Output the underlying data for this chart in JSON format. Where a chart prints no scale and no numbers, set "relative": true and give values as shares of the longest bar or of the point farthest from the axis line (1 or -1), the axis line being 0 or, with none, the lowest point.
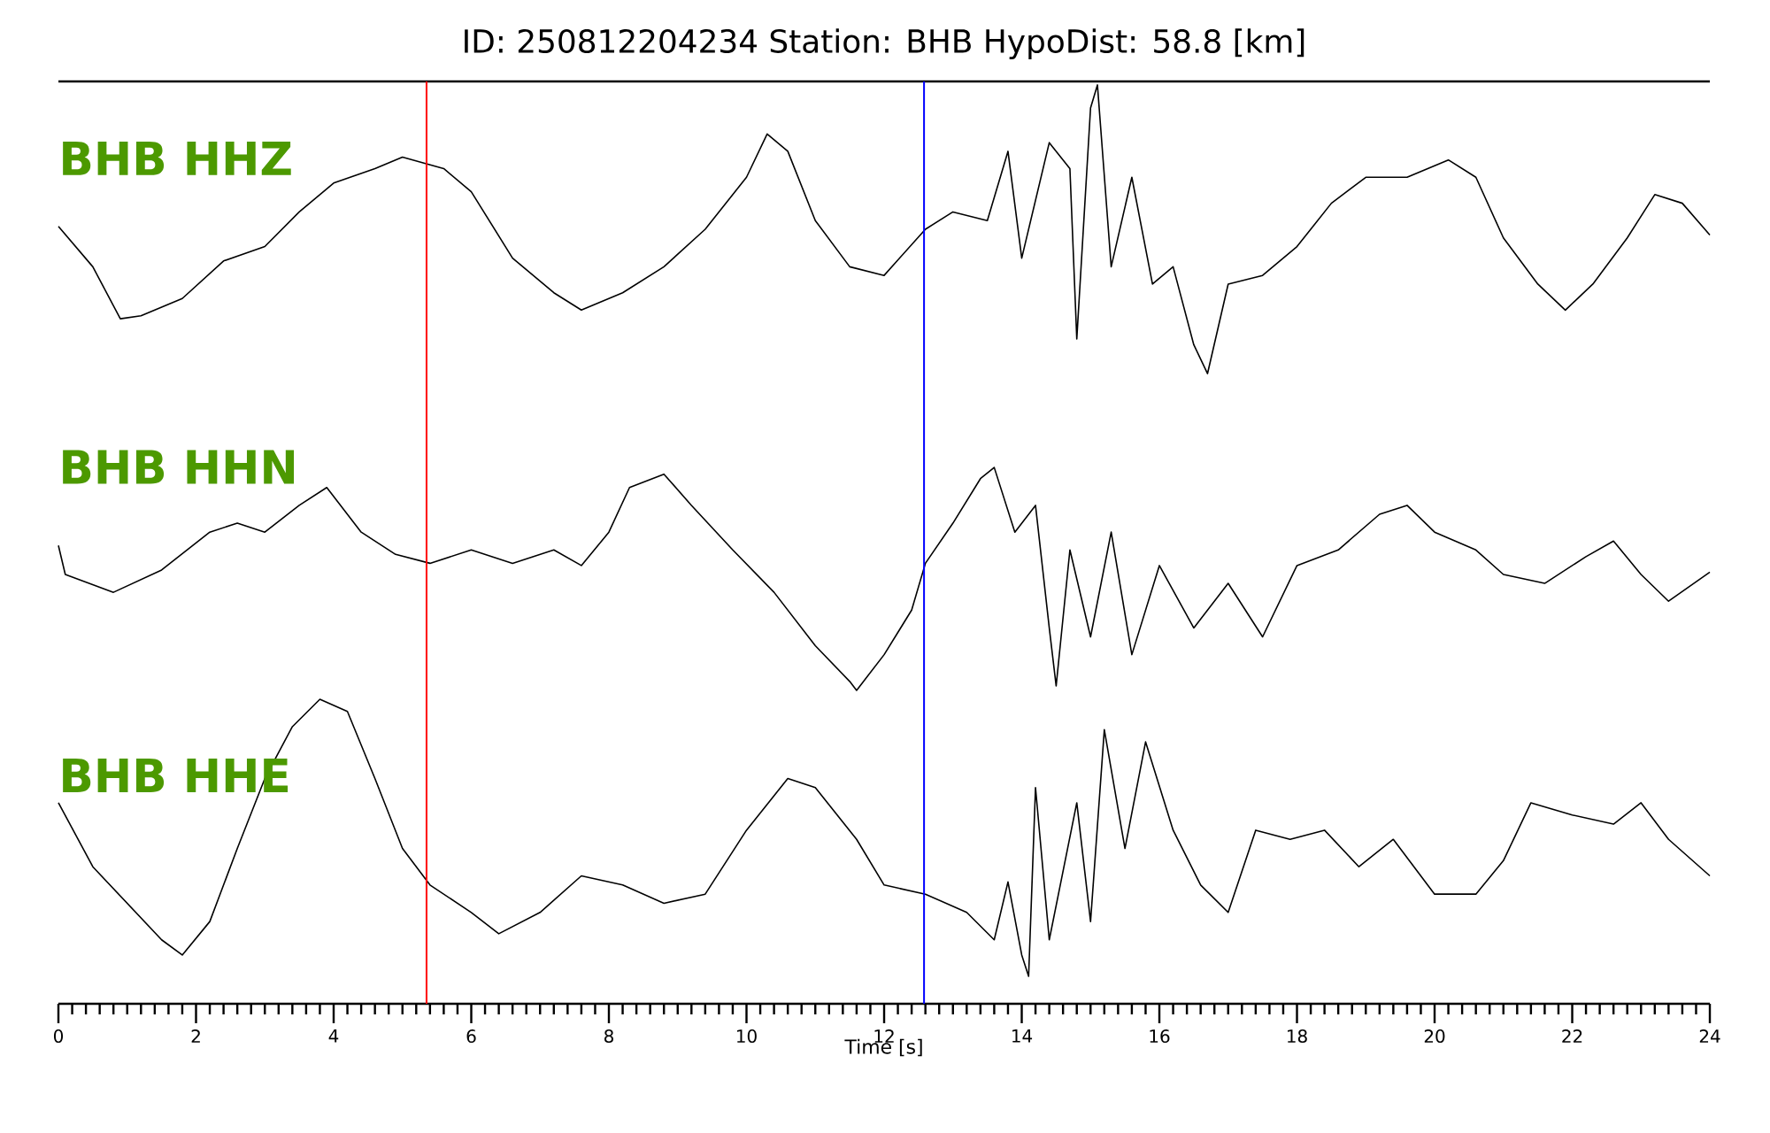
{
  "chart_data": [
    {
      "type": "line",
      "title": "ID: 250812204234   Station: BHB   HypoDist:    58.8 [km]",
      "relative": true,
      "xlim": [
        0,
        24
      ],
      "tick_labels": false,
      "annotations": [
        "BHB HHZ"
      ],
      "ref_lines": [
        {
          "axis": "x",
          "value": 5.35,
          "color": "#ff0000"
        },
        {
          "axis": "x",
          "value": 12.58,
          "color": "#0000ff"
        }
      ],
      "x": [
        0,
        0.5,
        0.9,
        1.2,
        1.8,
        2.4,
        3.0,
        3.5,
        4.0,
        4.6,
        5.0,
        5.6,
        6.0,
        6.6,
        7.2,
        7.6,
        8.2,
        8.8,
        9.4,
        10.0,
        10.3,
        10.6,
        11.0,
        11.5,
        12.0,
        12.6,
        13.0,
        13.5,
        13.8,
        14.0,
        14.4,
        14.7,
        14.8,
        15.0,
        15.1,
        15.3,
        15.6,
        15.9,
        16.2,
        16.5,
        16.7,
        17.0,
        17.5,
        18.0,
        18.5,
        19.0,
        19.6,
        20.2,
        20.6,
        21.0,
        21.5,
        21.9,
        22.3,
        22.8,
        23.2,
        23.6,
        24
      ],
      "series": [
        {
          "color": "#000000",
          "values": [
            0.51,
            0.37,
            0.19,
            0.2,
            0.26,
            0.39,
            0.44,
            0.56,
            0.66,
            0.71,
            0.75,
            0.71,
            0.63,
            0.4,
            0.28,
            0.22,
            0.28,
            0.37,
            0.5,
            0.68,
            0.83,
            0.77,
            0.53,
            0.37,
            0.34,
            0.5,
            0.56,
            0.53,
            0.77,
            0.4,
            0.8,
            0.71,
            0.12,
            0.92,
            1.0,
            0.37,
            0.68,
            0.31,
            0.37,
            0.1,
            0.0,
            0.31,
            0.34,
            0.44,
            0.59,
            0.68,
            0.68,
            0.74,
            0.68,
            0.47,
            0.31,
            0.22,
            0.31,
            0.47,
            0.62,
            0.59,
            0.48
          ]
        }
      ]
    },
    {
      "type": "line",
      "relative": true,
      "xlim": [
        0,
        24
      ],
      "tick_labels": false,
      "annotations": [
        "BHB HHN"
      ],
      "ref_lines": [
        {
          "axis": "x",
          "value": 5.35,
          "color": "#ff0000"
        },
        {
          "axis": "x",
          "value": 12.58,
          "color": "#0000ff"
        }
      ],
      "x": [
        0,
        0.1,
        0.8,
        1.5,
        2.2,
        2.6,
        3.0,
        3.5,
        3.9,
        4.4,
        4.9,
        5.4,
        6.0,
        6.6,
        7.2,
        7.6,
        8.0,
        8.3,
        8.8,
        9.2,
        9.8,
        10.4,
        11.0,
        11.5,
        11.6,
        12.0,
        12.4,
        12.6,
        13.0,
        13.4,
        13.6,
        13.9,
        14.2,
        14.4,
        14.5,
        14.7,
        15.0,
        15.3,
        15.6,
        16.0,
        16.5,
        17.0,
        17.5,
        18.0,
        18.6,
        19.2,
        19.6,
        20.0,
        20.6,
        21.0,
        21.6,
        22.2,
        22.6,
        23.0,
        23.4,
        24
      ],
      "series": [
        {
          "color": "#000000",
          "values": [
            0.65,
            0.52,
            0.44,
            0.54,
            0.71,
            0.75,
            0.71,
            0.83,
            0.91,
            0.71,
            0.61,
            0.57,
            0.63,
            0.57,
            0.63,
            0.56,
            0.71,
            0.91,
            0.97,
            0.83,
            0.63,
            0.44,
            0.2,
            0.04,
            0.0,
            0.16,
            0.36,
            0.57,
            0.75,
            0.95,
            1.0,
            0.71,
            0.83,
            0.28,
            0.02,
            0.63,
            0.24,
            0.71,
            0.16,
            0.56,
            0.28,
            0.48,
            0.24,
            0.56,
            0.63,
            0.79,
            0.83,
            0.71,
            0.63,
            0.52,
            0.48,
            0.6,
            0.67,
            0.52,
            0.4,
            0.53
          ]
        }
      ]
    },
    {
      "type": "line",
      "xlabel": "Time [s]",
      "relative": true,
      "xlim": [
        0,
        24
      ],
      "xticks": [
        0,
        2,
        4,
        6,
        8,
        10,
        12,
        14,
        16,
        18,
        20,
        22,
        24
      ],
      "annotations": [
        "BHB HHE"
      ],
      "ref_lines": [
        {
          "axis": "x",
          "value": 5.35,
          "color": "#ff0000"
        },
        {
          "axis": "x",
          "value": 12.58,
          "color": "#0000ff"
        }
      ],
      "x": [
        0,
        0.5,
        1.0,
        1.5,
        1.8,
        2.2,
        2.6,
        3.0,
        3.4,
        3.8,
        4.2,
        4.6,
        5.0,
        5.4,
        6.0,
        6.4,
        7.0,
        7.6,
        8.2,
        8.8,
        9.4,
        10.0,
        10.6,
        11.0,
        11.6,
        12.0,
        12.6,
        13.2,
        13.6,
        13.8,
        14.0,
        14.1,
        14.2,
        14.4,
        14.8,
        15.0,
        15.2,
        15.5,
        15.8,
        16.2,
        16.6,
        17.0,
        17.4,
        17.9,
        18.4,
        18.9,
        19.4,
        20.0,
        20.6,
        21.0,
        21.4,
        22.0,
        22.6,
        23.0,
        23.4,
        24
      ],
      "series": [
        {
          "color": "#000000",
          "values": [
            0.66,
            0.45,
            0.33,
            0.21,
            0.16,
            0.27,
            0.51,
            0.74,
            0.91,
            1.0,
            0.96,
            0.74,
            0.51,
            0.39,
            0.3,
            0.23,
            0.3,
            0.42,
            0.39,
            0.33,
            0.36,
            0.57,
            0.74,
            0.71,
            0.54,
            0.39,
            0.36,
            0.3,
            0.21,
            0.4,
            0.16,
            0.09,
            0.71,
            0.21,
            0.66,
            0.27,
            0.9,
            0.51,
            0.86,
            0.57,
            0.39,
            0.3,
            0.57,
            0.54,
            0.57,
            0.45,
            0.54,
            0.36,
            0.36,
            0.47,
            0.66,
            0.62,
            0.59,
            0.66,
            0.54,
            0.42
          ]
        }
      ]
    }
  ]
}
